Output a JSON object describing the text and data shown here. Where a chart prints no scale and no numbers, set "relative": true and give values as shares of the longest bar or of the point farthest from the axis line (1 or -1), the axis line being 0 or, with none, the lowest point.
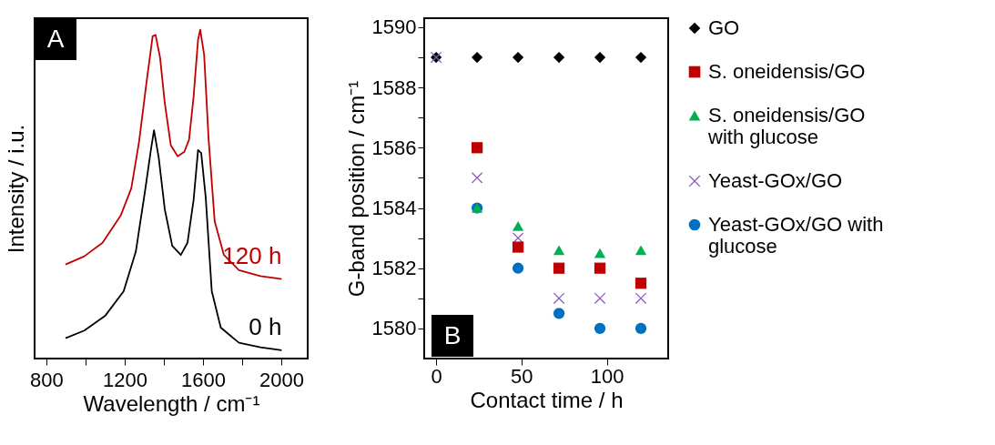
{
  "chart_data": [
    {
      "type": "line",
      "relative": true,
      "xlabel": "Wavelength / cm⁻¹",
      "ylabel": "Intensity / i.u.",
      "xlim": [
        740,
        2135
      ],
      "xticks": [
        800,
        {
          "value": 1000,
          "label": null
        },
        1200,
        {
          "value": 1400,
          "label": null
        },
        1600,
        {
          "value": 1800,
          "label": null
        },
        2000
      ],
      "grid": false,
      "marker": "none",
      "line_style": "solid",
      "tick_labels": "x",
      "annotations": [
        "A",
        "120 h",
        "0 h"
      ],
      "series": [
        {
          "color": "#c00000",
          "x": [
            898,
            994,
            1087,
            1180,
            1234,
            1273,
            1312,
            1343,
            1358,
            1381,
            1405,
            1436,
            1471,
            1505,
            1529,
            1552,
            1575,
            1586,
            1606,
            1629,
            1660,
            1707,
            1784,
            1893,
            2002
          ],
          "values": [
            0.286,
            0.311,
            0.352,
            0.435,
            0.518,
            0.657,
            0.841,
            0.98,
            0.984,
            0.915,
            0.777,
            0.648,
            0.615,
            0.629,
            0.666,
            0.795,
            0.97,
            1.0,
            0.924,
            0.666,
            0.417,
            0.315,
            0.269,
            0.251,
            0.242
          ]
        },
        {
          "color": "#000000",
          "x": [
            898,
            994,
            1102,
            1195,
            1257,
            1304,
            1335,
            1350,
            1374,
            1405,
            1443,
            1487,
            1521,
            1552,
            1575,
            1591,
            1614,
            1645,
            1691,
            1784,
            1893,
            2002
          ],
          "values": [
            0.062,
            0.085,
            0.131,
            0.205,
            0.325,
            0.509,
            0.638,
            0.694,
            0.611,
            0.454,
            0.343,
            0.315,
            0.352,
            0.481,
            0.634,
            0.625,
            0.491,
            0.205,
            0.094,
            0.048,
            0.034,
            0.025
          ]
        }
      ]
    },
    {
      "type": "scatter",
      "xlabel": "Contact time / h",
      "ylabel": "G-band position / cm⁻¹",
      "xlim": [
        -7,
        136
      ],
      "xticks": [
        0,
        50,
        100
      ],
      "ylim": [
        1579,
        1590.3
      ],
      "yticks": [
        1580,
        {
          "value": 1581,
          "label": null
        },
        1582,
        {
          "value": 1583,
          "label": null
        },
        1584,
        {
          "value": 1585,
          "label": null
        },
        1586,
        {
          "value": 1587,
          "label": null
        },
        1588,
        {
          "value": 1589,
          "label": null
        },
        1590
      ],
      "grid": false,
      "legend": "right",
      "annotations": [
        "B"
      ],
      "x": [
        0,
        24,
        48,
        72,
        96,
        120
      ],
      "series": [
        {
          "name": "GO",
          "color": "#000000",
          "marker": "diamond",
          "values": [
            1589,
            1589,
            1589,
            1589,
            1589,
            1589
          ]
        },
        {
          "name": "S. oneidensis/GO",
          "color": "#c00000",
          "marker": "square",
          "values": [
            null,
            1586,
            1582.7,
            1582,
            1582,
            1581.5
          ]
        },
        {
          "name": "S. oneidensis/GO with glucose",
          "color": "#00b050",
          "marker": "triangle",
          "values": [
            null,
            1584,
            1583.4,
            1582.6,
            1582.5,
            1582.6
          ]
        },
        {
          "name": "Yeast-GOx/GO",
          "color": "#8e5bbf",
          "marker": "cross",
          "values": [
            1589,
            1585,
            1583,
            1581,
            1581,
            1581
          ]
        },
        {
          "name": "Yeast-GOx/GO with glucose",
          "color": "#0070c0",
          "marker": "circle",
          "values": [
            null,
            1584,
            1582,
            1580.5,
            1580,
            1580
          ]
        }
      ]
    }
  ]
}
